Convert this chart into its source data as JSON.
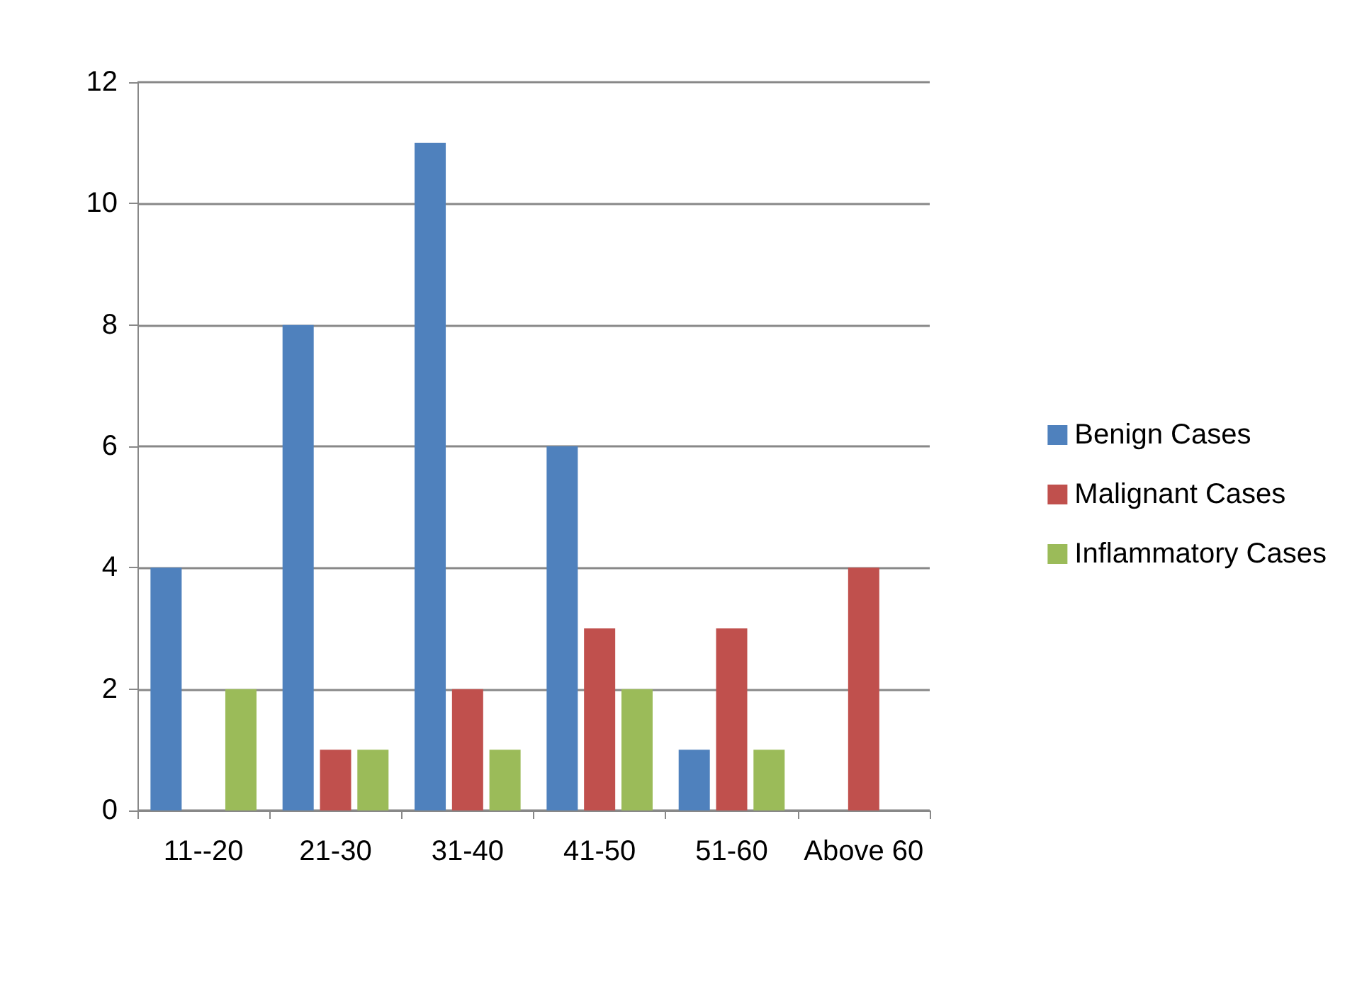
{
  "chart_data": {
    "type": "bar",
    "categories": [
      "11--20",
      "21-30",
      "31-40",
      "41-50",
      "51-60",
      "Above 60"
    ],
    "series": [
      {
        "name": "Benign Cases",
        "color": "#4f81bd",
        "values": [
          4,
          8,
          11,
          6,
          1,
          0
        ]
      },
      {
        "name": "Malignant Cases",
        "color": "#c0504d",
        "values": [
          0,
          1,
          2,
          3,
          3,
          4
        ]
      },
      {
        "name": "Inflammatory Cases",
        "color": "#9bbb59",
        "values": [
          2,
          1,
          1,
          2,
          1,
          0
        ]
      }
    ],
    "ylim": [
      0,
      12
    ],
    "yticks": [
      0,
      2,
      4,
      6,
      8,
      10,
      12
    ],
    "grid": "y",
    "legend": "right"
  }
}
